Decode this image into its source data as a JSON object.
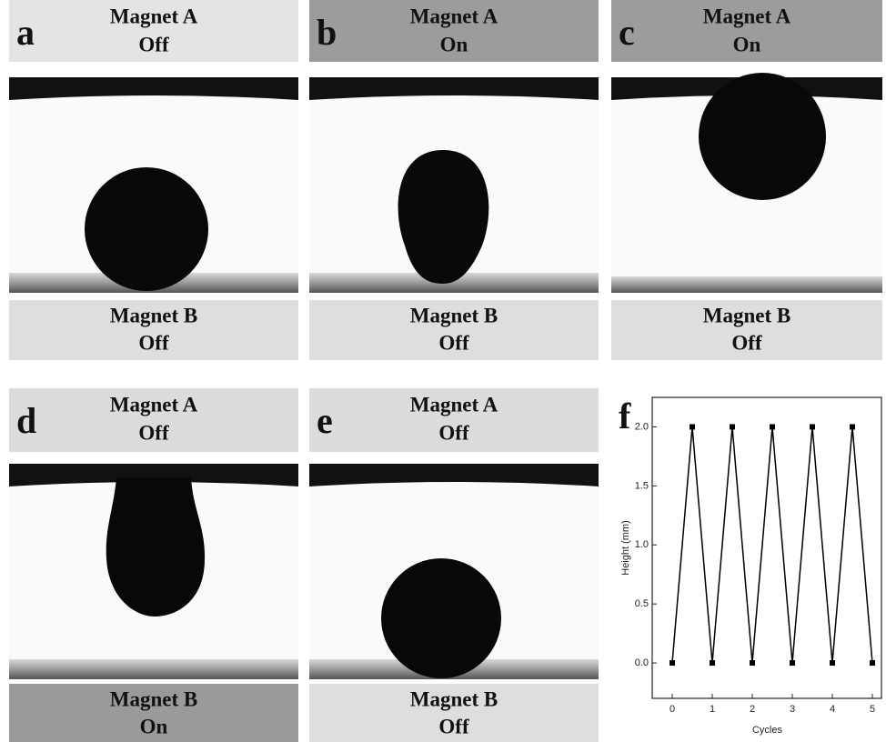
{
  "panels": [
    {
      "label": "a",
      "magnet_a": "Magnet A",
      "magnet_a_state": "Off",
      "magnet_b": "Magnet B",
      "magnet_b_state": "Off"
    },
    {
      "label": "b",
      "magnet_a": "Magnet A",
      "magnet_a_state": "On",
      "magnet_b": "Magnet B",
      "magnet_b_state": "Off"
    },
    {
      "label": "c",
      "magnet_a": "Magnet A",
      "magnet_a_state": "On",
      "magnet_b": "Magnet B",
      "magnet_b_state": "Off"
    },
    {
      "label": "d",
      "magnet_a": "Magnet A",
      "magnet_a_state": "Off",
      "magnet_b": "Magnet B",
      "magnet_b_state": "On"
    },
    {
      "label": "e",
      "magnet_a": "Magnet A",
      "magnet_a_state": "Off",
      "magnet_b": "Magnet B",
      "magnet_b_state": "Off"
    }
  ],
  "chart_data": {
    "type": "line",
    "panel_label": "f",
    "x_label": "Cycles",
    "y_label": "Height (mm)",
    "x": [
      0,
      0.5,
      1,
      1.5,
      2,
      2.5,
      3,
      3.5,
      4,
      4.5,
      5
    ],
    "values": [
      0,
      2,
      0,
      2,
      0,
      2,
      0,
      2,
      0,
      2,
      0
    ],
    "color": "#000000",
    "xlim": [
      -0.5,
      5.25
    ],
    "ylim": [
      -0.3,
      2.25
    ],
    "xticks": [
      0,
      1,
      2,
      3,
      4,
      5
    ],
    "yticks": [
      {
        "value": 0,
        "label": "0.0"
      },
      {
        "value": 0.5,
        "label": "0.5"
      },
      {
        "value": 1,
        "label": "1.0"
      },
      {
        "value": 1.5,
        "label": "1.5"
      },
      {
        "value": 2,
        "label": "2.0"
      }
    ]
  }
}
